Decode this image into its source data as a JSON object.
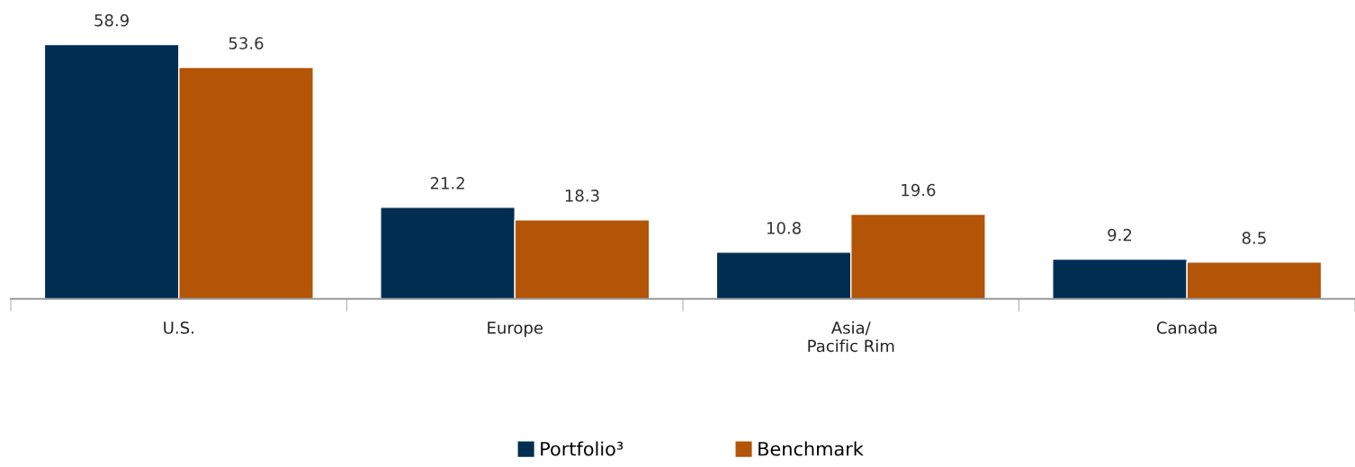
{
  "chart_data": {
    "type": "bar",
    "categories": [
      "U.S.",
      "Europe",
      "Asia/\nPacific Rim",
      "Canada"
    ],
    "series": [
      {
        "name": "Portfolio³",
        "color": "#002d52",
        "values": [
          58.9,
          21.2,
          10.8,
          9.2
        ]
      },
      {
        "name": "Benchmark",
        "color": "#b35407",
        "values": [
          53.6,
          18.3,
          19.6,
          8.5
        ]
      }
    ],
    "data_labels": true,
    "legend": "bottom",
    "grid": false
  }
}
